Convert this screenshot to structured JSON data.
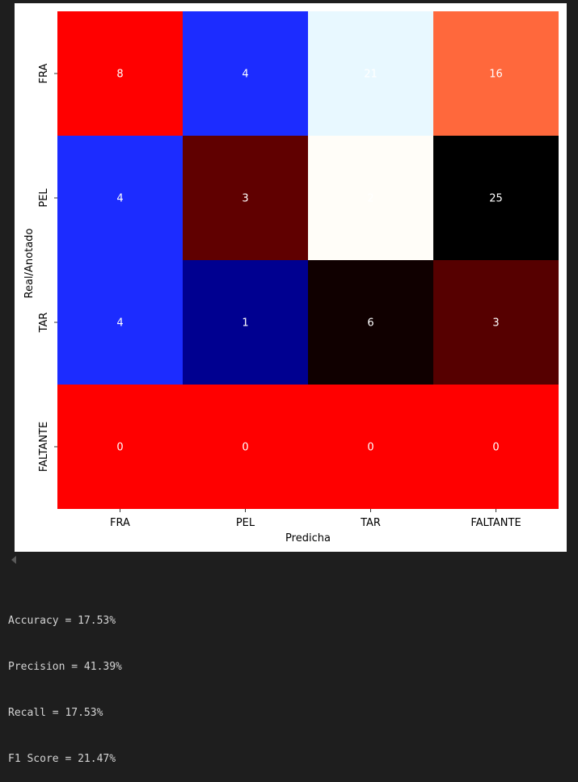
{
  "chart_data": {
    "type": "heatmap",
    "title": "",
    "xlabel": "Predicha",
    "ylabel": "Real/Anotado",
    "x_categories": [
      "FRA",
      "PEL",
      "TAR",
      "FALTANTE"
    ],
    "y_categories": [
      "FRA",
      "PEL",
      "TAR",
      "FALTANTE"
    ],
    "values": [
      [
        8,
        4,
        21,
        16
      ],
      [
        4,
        3,
        2,
        25
      ],
      [
        4,
        1,
        6,
        3
      ],
      [
        0,
        0,
        0,
        0
      ]
    ],
    "colorbar": false,
    "cell_colors": [
      [
        "#ff0000",
        "#1c2cff",
        "#e8f8ff",
        "#ff683c"
      ],
      [
        "#1c2cff",
        "#600000",
        "#fffdf8",
        "#000000"
      ],
      [
        "#1c2cff",
        "#000090",
        "#100000",
        "#560000"
      ],
      [
        "#ff0000",
        "#ff0000",
        "#ff0000",
        "#ff0000"
      ]
    ],
    "annotation_color": "#ffffff"
  },
  "output": {
    "lines": [
      "Accuracy = 17.53%",
      "Precision = 41.39%",
      "Recall = 17.53%",
      "F1 Score = 21.47%"
    ]
  }
}
